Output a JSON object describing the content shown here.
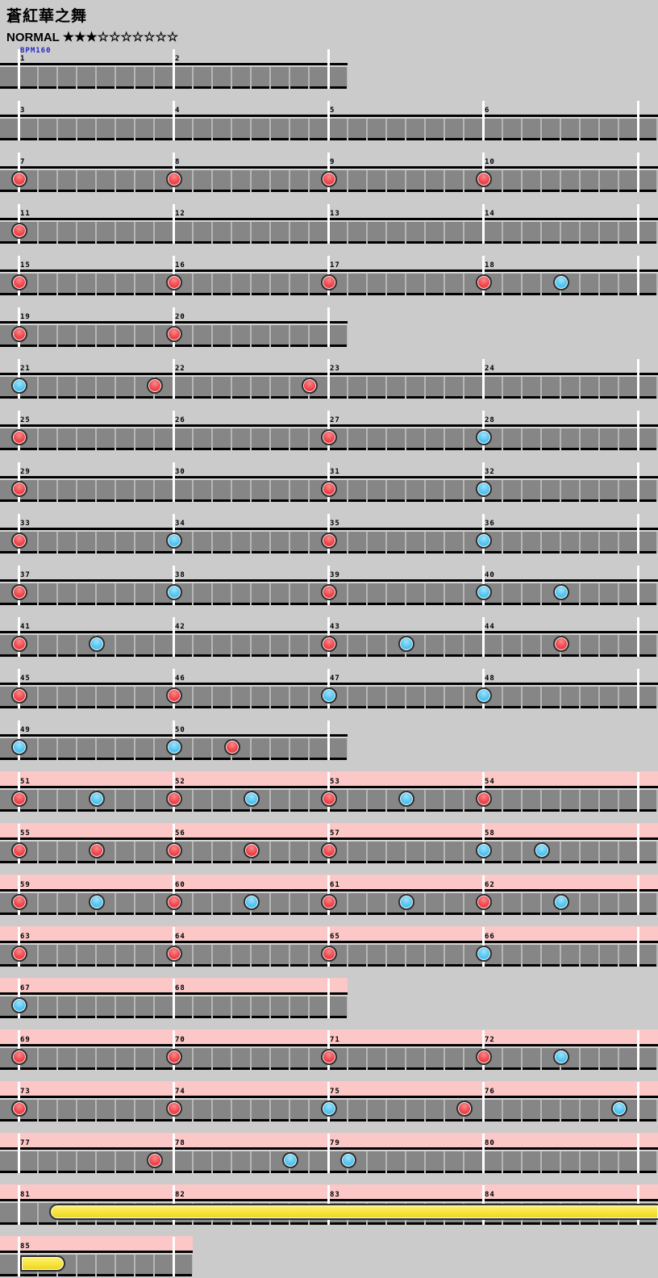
{
  "header": {
    "title": "蒼紅華之舞",
    "difficulty_label": "NORMAL",
    "stars": "★★★☆☆☆☆☆☆☆",
    "bpm_label": "BPM160"
  },
  "colors": {
    "page_bg": "#cbcbcb",
    "track_fill": "#868686",
    "cell_separator": "#b6b6b6",
    "track_border": "#000000",
    "measure_line": "#ffffff",
    "gogo_pink": "#fbc7c7",
    "note_don_red": "#ee4248",
    "note_ka_blue": "#4fc3f0",
    "drumroll_yellow": "#f7e43b",
    "bpm_text_blue": "#2525cc"
  },
  "chart": {
    "measures_per_full_row": 4,
    "beats_per_measure": 8,
    "rows": [
      {
        "first": 1,
        "count": 2,
        "size": "half",
        "gogo": false,
        "bpm": true,
        "notes": []
      },
      {
        "first": 3,
        "count": 4,
        "size": "full",
        "gogo": false,
        "notes": []
      },
      {
        "first": 7,
        "count": 4,
        "size": "full",
        "gogo": false,
        "notes": [
          {
            "m": 7,
            "o": 0,
            "t": "don"
          },
          {
            "m": 8,
            "o": 0,
            "t": "don"
          },
          {
            "m": 9,
            "o": 0,
            "t": "don"
          },
          {
            "m": 10,
            "o": 0,
            "t": "don"
          }
        ]
      },
      {
        "first": 11,
        "count": 4,
        "size": "full",
        "gogo": false,
        "notes": [
          {
            "m": 11,
            "o": 0,
            "t": "don"
          }
        ]
      },
      {
        "first": 15,
        "count": 4,
        "size": "full",
        "gogo": false,
        "notes": [
          {
            "m": 15,
            "o": 0,
            "t": "don"
          },
          {
            "m": 16,
            "o": 0,
            "t": "don"
          },
          {
            "m": 17,
            "o": 0,
            "t": "don"
          },
          {
            "m": 18,
            "o": 0,
            "t": "don"
          },
          {
            "m": 18,
            "o": 4,
            "t": "ka"
          }
        ]
      },
      {
        "first": 19,
        "count": 2,
        "size": "half",
        "gogo": false,
        "notes": [
          {
            "m": 19,
            "o": 0,
            "t": "don"
          },
          {
            "m": 20,
            "o": 0,
            "t": "don"
          }
        ]
      },
      {
        "first": 21,
        "count": 4,
        "size": "full",
        "gogo": false,
        "notes": [
          {
            "m": 21,
            "o": 0,
            "t": "ka"
          },
          {
            "m": 21,
            "o": 7,
            "t": "don"
          },
          {
            "m": 22,
            "o": 7,
            "t": "don"
          }
        ]
      },
      {
        "first": 25,
        "count": 4,
        "size": "full",
        "gogo": false,
        "notes": [
          {
            "m": 25,
            "o": 0,
            "t": "don"
          },
          {
            "m": 27,
            "o": 0,
            "t": "don"
          },
          {
            "m": 28,
            "o": 0,
            "t": "ka"
          }
        ]
      },
      {
        "first": 29,
        "count": 4,
        "size": "full",
        "gogo": false,
        "notes": [
          {
            "m": 29,
            "o": 0,
            "t": "don"
          },
          {
            "m": 31,
            "o": 0,
            "t": "don"
          },
          {
            "m": 32,
            "o": 0,
            "t": "ka"
          }
        ]
      },
      {
        "first": 33,
        "count": 4,
        "size": "full",
        "gogo": false,
        "notes": [
          {
            "m": 33,
            "o": 0,
            "t": "don"
          },
          {
            "m": 34,
            "o": 0,
            "t": "ka"
          },
          {
            "m": 35,
            "o": 0,
            "t": "don"
          },
          {
            "m": 36,
            "o": 0,
            "t": "ka"
          }
        ]
      },
      {
        "first": 37,
        "count": 4,
        "size": "full",
        "gogo": false,
        "notes": [
          {
            "m": 37,
            "o": 0,
            "t": "don"
          },
          {
            "m": 38,
            "o": 0,
            "t": "ka"
          },
          {
            "m": 39,
            "o": 0,
            "t": "don"
          },
          {
            "m": 40,
            "o": 0,
            "t": "ka"
          },
          {
            "m": 40,
            "o": 4,
            "t": "ka"
          }
        ]
      },
      {
        "first": 41,
        "count": 4,
        "size": "full",
        "gogo": false,
        "notes": [
          {
            "m": 41,
            "o": 0,
            "t": "don"
          },
          {
            "m": 41,
            "o": 4,
            "t": "ka"
          },
          {
            "m": 43,
            "o": 0,
            "t": "don"
          },
          {
            "m": 43,
            "o": 4,
            "t": "ka"
          },
          {
            "m": 44,
            "o": 4,
            "t": "don"
          }
        ]
      },
      {
        "first": 45,
        "count": 4,
        "size": "full",
        "gogo": false,
        "notes": [
          {
            "m": 45,
            "o": 0,
            "t": "don"
          },
          {
            "m": 46,
            "o": 0,
            "t": "don"
          },
          {
            "m": 47,
            "o": 0,
            "t": "ka"
          },
          {
            "m": 48,
            "o": 0,
            "t": "ka"
          }
        ]
      },
      {
        "first": 49,
        "count": 2,
        "size": "half",
        "gogo": false,
        "notes": [
          {
            "m": 49,
            "o": 0,
            "t": "ka"
          },
          {
            "m": 50,
            "o": 0,
            "t": "ka"
          },
          {
            "m": 50,
            "o": 3,
            "t": "don"
          }
        ]
      },
      {
        "first": 51,
        "count": 4,
        "size": "full",
        "gogo": true,
        "notes": [
          {
            "m": 51,
            "o": 0,
            "t": "don"
          },
          {
            "m": 51,
            "o": 4,
            "t": "ka"
          },
          {
            "m": 52,
            "o": 0,
            "t": "don"
          },
          {
            "m": 52,
            "o": 4,
            "t": "ka"
          },
          {
            "m": 53,
            "o": 0,
            "t": "don"
          },
          {
            "m": 53,
            "o": 4,
            "t": "ka"
          },
          {
            "m": 54,
            "o": 0,
            "t": "don"
          }
        ]
      },
      {
        "first": 55,
        "count": 4,
        "size": "full",
        "gogo": true,
        "notes": [
          {
            "m": 55,
            "o": 0,
            "t": "don"
          },
          {
            "m": 55,
            "o": 4,
            "t": "don"
          },
          {
            "m": 56,
            "o": 0,
            "t": "don"
          },
          {
            "m": 56,
            "o": 4,
            "t": "don"
          },
          {
            "m": 57,
            "o": 0,
            "t": "don"
          },
          {
            "m": 58,
            "o": 0,
            "t": "ka"
          },
          {
            "m": 58,
            "o": 3,
            "t": "ka"
          }
        ]
      },
      {
        "first": 59,
        "count": 4,
        "size": "full",
        "gogo": true,
        "notes": [
          {
            "m": 59,
            "o": 0,
            "t": "don"
          },
          {
            "m": 59,
            "o": 4,
            "t": "ka"
          },
          {
            "m": 60,
            "o": 0,
            "t": "don"
          },
          {
            "m": 60,
            "o": 4,
            "t": "ka"
          },
          {
            "m": 61,
            "o": 0,
            "t": "don"
          },
          {
            "m": 61,
            "o": 4,
            "t": "ka"
          },
          {
            "m": 62,
            "o": 0,
            "t": "don"
          },
          {
            "m": 62,
            "o": 4,
            "t": "ka"
          }
        ]
      },
      {
        "first": 63,
        "count": 4,
        "size": "full",
        "gogo": true,
        "notes": [
          {
            "m": 63,
            "o": 0,
            "t": "don"
          },
          {
            "m": 64,
            "o": 0,
            "t": "don"
          },
          {
            "m": 65,
            "o": 0,
            "t": "don"
          },
          {
            "m": 66,
            "o": 0,
            "t": "ka"
          }
        ]
      },
      {
        "first": 67,
        "count": 2,
        "size": "half",
        "gogo": true,
        "notes": [
          {
            "m": 67,
            "o": 0,
            "t": "ka"
          }
        ]
      },
      {
        "first": 69,
        "count": 4,
        "size": "full",
        "gogo": true,
        "notes": [
          {
            "m": 69,
            "o": 0,
            "t": "don"
          },
          {
            "m": 70,
            "o": 0,
            "t": "don"
          },
          {
            "m": 71,
            "o": 0,
            "t": "don"
          },
          {
            "m": 72,
            "o": 0,
            "t": "don"
          },
          {
            "m": 72,
            "o": 4,
            "t": "ka"
          }
        ]
      },
      {
        "first": 73,
        "count": 4,
        "size": "full",
        "gogo": true,
        "notes": [
          {
            "m": 73,
            "o": 0,
            "t": "don"
          },
          {
            "m": 74,
            "o": 0,
            "t": "don"
          },
          {
            "m": 75,
            "o": 0,
            "t": "ka"
          },
          {
            "m": 75,
            "o": 7,
            "t": "don"
          },
          {
            "m": 76,
            "o": 7,
            "t": "ka"
          }
        ]
      },
      {
        "first": 77,
        "count": 4,
        "size": "full",
        "gogo": true,
        "notes": [
          {
            "m": 77,
            "o": 7,
            "t": "don"
          },
          {
            "m": 78,
            "o": 6,
            "t": "ka"
          },
          {
            "m": 79,
            "o": 1,
            "t": "ka"
          }
        ]
      },
      {
        "first": 81,
        "count": 4,
        "size": "full",
        "gogo": true,
        "notes": [],
        "roll": {
          "from_m": 81,
          "from_o": 2,
          "to": "row-end"
        }
      },
      {
        "first": 85,
        "count": 1,
        "size": "single",
        "gogo": true,
        "notes": [],
        "roll": {
          "from": "row-start",
          "to_m": 85,
          "to_o": 2
        }
      }
    ]
  }
}
